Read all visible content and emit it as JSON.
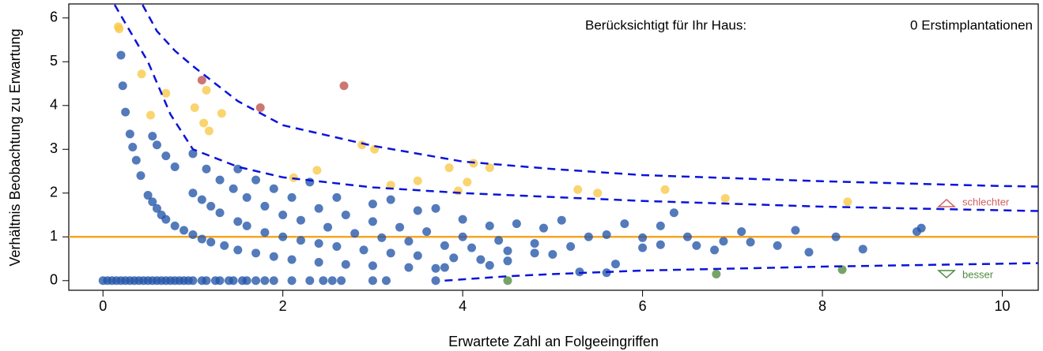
{
  "chart_data": {
    "type": "scatter",
    "xlabel": "Erwartete Zahl an Folgeeingriffen",
    "ylabel": "Verhältnis Beobachtung zu Erwartung",
    "xlim": [
      -0.38,
      10.4
    ],
    "ylim": [
      -0.22,
      6.32
    ],
    "xticks": [
      0,
      2,
      4,
      6,
      8,
      10
    ],
    "yticks": [
      0,
      1,
      2,
      3,
      4,
      5,
      6
    ],
    "grid": false,
    "reference_line": {
      "y": 1,
      "color": "#f5a623"
    },
    "annotations": {
      "label": "Berücksichtigt für Ihr Haus:",
      "count": "0 Erstimplantationen",
      "worse": "schlechter",
      "better": "besser"
    },
    "lines": [
      {
        "color": "#0a14d8",
        "x": [
          0.44,
          0.6,
          0.8,
          1,
          1.5,
          2,
          3,
          4,
          5,
          6,
          8,
          10,
          10.4
        ],
        "values": [
          6.3,
          5.7,
          5.25,
          4.9,
          4.1,
          3.55,
          3.08,
          2.72,
          2.55,
          2.41,
          2.27,
          2.16,
          2.15
        ]
      },
      {
        "color": "#0a14d8",
        "x": [
          0.13,
          0.3,
          0.5,
          0.75,
          1,
          1.5,
          2,
          3,
          4,
          6,
          8,
          10.4
        ],
        "values": [
          6.3,
          5.7,
          5.0,
          3.8,
          3.0,
          2.6,
          2.36,
          2.13,
          2.0,
          1.82,
          1.69,
          1.59
        ]
      },
      {
        "color": "#0a14d8",
        "x": [
          3.8,
          4.5,
          5,
          6,
          8,
          10.4
        ],
        "values": [
          0,
          0.1,
          0.15,
          0.23,
          0.32,
          0.4
        ]
      }
    ],
    "series": [
      {
        "color": "#2255a8",
        "x": [
          0,
          0.05,
          0.1,
          0.15,
          0.2,
          0.25,
          0.3,
          0.35,
          0.4,
          0.45,
          0.5,
          0.55,
          0.6,
          0.65,
          0.7,
          0.75,
          0.8,
          0.85,
          0.9,
          0.95,
          1.0,
          1.1,
          1.15,
          1.25,
          1.3,
          1.4,
          1.45,
          1.55,
          1.6,
          1.7,
          1.8,
          1.9,
          2.1,
          2.3,
          2.45,
          2.55,
          2.65,
          3.0,
          3.15,
          3.7,
          0.2,
          0.22,
          0.25,
          0.3,
          0.33,
          0.37,
          0.42,
          0.5,
          0.55,
          0.6,
          0.65,
          0.7,
          0.8,
          0.9,
          1.0,
          1.1,
          1.2,
          1.35,
          1.5,
          1.7,
          1.9,
          2.1,
          2.4,
          2.7,
          3.0,
          3.4,
          3.7,
          0.55,
          0.6,
          0.7,
          0.8,
          1.0,
          1.1,
          1.2,
          1.3,
          1.5,
          1.6,
          1.8,
          2.0,
          2.2,
          2.4,
          2.6,
          2.9,
          3.2,
          3.5,
          3.9,
          4.2,
          4.5,
          1.0,
          1.15,
          1.3,
          1.45,
          1.6,
          1.8,
          2.0,
          2.2,
          2.5,
          2.8,
          3.1,
          3.4,
          3.8,
          4.1,
          4.5,
          4.8,
          1.5,
          1.7,
          1.9,
          2.1,
          2.4,
          2.7,
          3.0,
          3.3,
          3.6,
          4.0,
          4.4,
          4.8,
          5.2,
          2.3,
          2.6,
          3.0,
          3.2,
          3.5,
          3.7,
          4.0,
          4.3,
          4.6,
          4.9,
          5.1,
          5.4,
          5.6,
          5.8,
          6.0,
          6.2,
          6.35,
          6.5,
          6.6,
          6.9,
          7.1,
          7.5,
          7.7,
          7.85,
          8.15,
          8.45,
          9.05,
          9.1,
          5.3,
          5.6,
          5.0,
          6.8,
          6.0,
          4.3,
          3.8,
          5.7,
          6.2,
          7.2
        ],
        "values": [
          0,
          0,
          0,
          0,
          0,
          0,
          0,
          0,
          0,
          0,
          0,
          0,
          0,
          0,
          0,
          0,
          0,
          0,
          0,
          0,
          0,
          0,
          0,
          0,
          0,
          0,
          0,
          0,
          0,
          0,
          0,
          0,
          0,
          0,
          0,
          0,
          0,
          0,
          0,
          0,
          5.15,
          4.45,
          3.85,
          3.35,
          3.05,
          2.75,
          2.4,
          1.95,
          1.8,
          1.65,
          1.5,
          1.4,
          1.25,
          1.15,
          1.05,
          0.95,
          0.88,
          0.8,
          0.7,
          0.63,
          0.55,
          0.48,
          0.42,
          0.37,
          0.34,
          0.3,
          0.28,
          3.3,
          3.1,
          2.85,
          2.6,
          2.0,
          1.85,
          1.7,
          1.55,
          1.35,
          1.25,
          1.1,
          1.0,
          0.92,
          0.85,
          0.78,
          0.7,
          0.63,
          0.57,
          0.52,
          0.48,
          0.45,
          2.9,
          2.55,
          2.3,
          2.1,
          1.9,
          1.7,
          1.5,
          1.38,
          1.22,
          1.08,
          0.98,
          0.9,
          0.8,
          0.75,
          0.68,
          0.63,
          2.55,
          2.3,
          2.1,
          1.9,
          1.65,
          1.5,
          1.35,
          1.22,
          1.12,
          1.0,
          0.92,
          0.85,
          0.78,
          2.25,
          1.9,
          1.75,
          1.85,
          1.6,
          1.65,
          1.4,
          1.25,
          1.3,
          1.2,
          1.38,
          1.0,
          1.05,
          1.3,
          0.98,
          1.25,
          1.55,
          1.0,
          0.8,
          0.9,
          1.12,
          0.8,
          1.15,
          0.65,
          1.0,
          0.72,
          1.12,
          1.2,
          0.2,
          0.18,
          0.6,
          0.7,
          0.75,
          0.35,
          0.3,
          0.38,
          0.82,
          0.88
        ]
      },
      {
        "color": "#f9c846",
        "x": [
          0.17,
          0.18,
          0.43,
          0.53,
          0.7,
          1.02,
          1.12,
          1.15,
          1.18,
          1.32,
          2.12,
          2.38,
          2.88,
          3.02,
          3.2,
          3.5,
          3.85,
          3.95,
          4.05,
          4.12,
          4.3,
          5.28,
          5.5,
          6.25,
          6.92,
          8.28
        ],
        "values": [
          5.8,
          5.75,
          4.72,
          3.78,
          4.28,
          3.95,
          3.6,
          4.35,
          3.42,
          3.82,
          2.35,
          2.52,
          3.1,
          3.0,
          2.18,
          2.28,
          2.58,
          2.05,
          2.25,
          2.68,
          2.58,
          2.08,
          2.0,
          2.08,
          1.88,
          1.8
        ]
      },
      {
        "color": "#c0504d",
        "x": [
          1.1,
          1.75,
          2.68
        ],
        "values": [
          4.58,
          3.95,
          4.45
        ]
      },
      {
        "color": "#4e8a3e",
        "x": [
          4.5,
          6.82,
          8.22
        ],
        "values": [
          0.0,
          0.15,
          0.25
        ]
      }
    ]
  }
}
